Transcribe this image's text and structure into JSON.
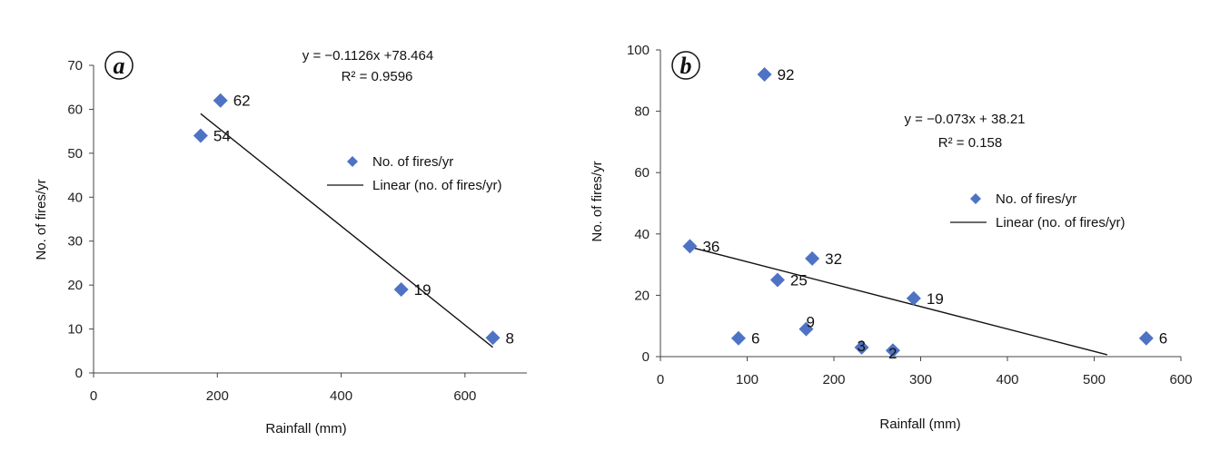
{
  "chart_data": [
    {
      "type": "scatter",
      "panel_label": "a",
      "xlabel": "Rainfall (mm)",
      "ylabel": "No. of fires/yr",
      "xlim": [
        0,
        700
      ],
      "ylim": [
        0,
        70
      ],
      "xticks": [
        0,
        200,
        400,
        600
      ],
      "yticks": [
        0,
        10,
        20,
        30,
        40,
        50,
        60,
        70
      ],
      "series": [
        {
          "name": "No. of fires/yr",
          "marker": "diamond",
          "color": "#4f73c4",
          "points": [
            {
              "x": 205,
              "y": 62,
              "label": "62"
            },
            {
              "x": 173,
              "y": 54,
              "label": "54"
            },
            {
              "x": 497,
              "y": 19,
              "label": "19"
            },
            {
              "x": 645,
              "y": 8,
              "label": "8"
            }
          ]
        }
      ],
      "trendline": {
        "name": "Linear (no. of fires/yr)",
        "slope": -0.1126,
        "intercept": 78.464,
        "x_range": [
          173,
          645
        ],
        "color": "#111111"
      },
      "equation": "y = −0.1126x +78.464",
      "r2": "R² = 0.9596",
      "legend": [
        {
          "label": "No. of fires/yr",
          "kind": "marker"
        },
        {
          "label": "Linear (no. of fires/yr)",
          "kind": "line"
        }
      ],
      "grid": false
    },
    {
      "type": "scatter",
      "panel_label": "b",
      "xlabel": "Rainfall (mm)",
      "ylabel": "No. of fires/yr",
      "xlim": [
        0,
        600
      ],
      "ylim": [
        0,
        100
      ],
      "xticks": [
        0,
        100,
        200,
        300,
        400,
        500,
        600
      ],
      "yticks": [
        0,
        20,
        40,
        60,
        80,
        100
      ],
      "series": [
        {
          "name": "No. of fires/yr",
          "marker": "diamond",
          "color": "#4f73c4",
          "points": [
            {
              "x": 120,
              "y": 92,
              "label": "92"
            },
            {
              "x": 34,
              "y": 36,
              "label": "36"
            },
            {
              "x": 175,
              "y": 32,
              "label": "32"
            },
            {
              "x": 135,
              "y": 25,
              "label": "25"
            },
            {
              "x": 292,
              "y": 19,
              "label": "19"
            },
            {
              "x": 168,
              "y": 9,
              "label": "9"
            },
            {
              "x": 90,
              "y": 6,
              "label": "6"
            },
            {
              "x": 232,
              "y": 3,
              "label": "3"
            },
            {
              "x": 268,
              "y": 2,
              "label": "2"
            },
            {
              "x": 560,
              "y": 6,
              "label": "6"
            }
          ]
        }
      ],
      "trendline": {
        "name": "Linear (no. of fires/yr)",
        "slope": -0.073,
        "intercept": 38.21,
        "x_range": [
          34,
          515
        ],
        "color": "#111111"
      },
      "equation": "y = −0.073x + 38.21",
      "r2": "R² = 0.158",
      "legend": [
        {
          "label": "No. of fires/yr",
          "kind": "marker"
        },
        {
          "label": "Linear (no. of fires/yr)",
          "kind": "line"
        }
      ],
      "grid": false
    }
  ]
}
